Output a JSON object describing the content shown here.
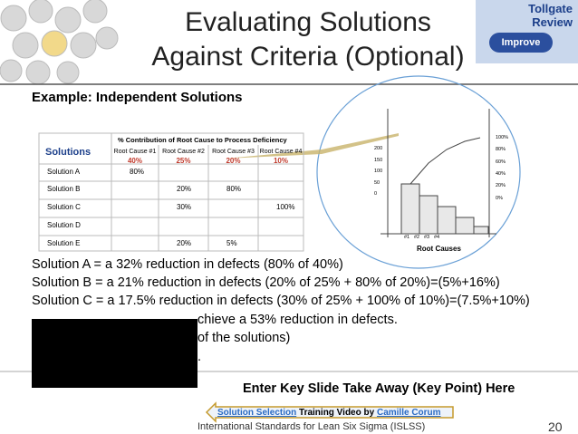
{
  "title": {
    "line1": "Evaluating Solutions",
    "line2": "Against Criteria (Optional)"
  },
  "badge": {
    "line1": "Tollgate",
    "line2": "Review",
    "phase": "Improve"
  },
  "subtitle": "Example: Independent Solutions",
  "table": {
    "caption": "% Contribution of Root Cause to Process Deficiency",
    "corner": "Solutions",
    "causes": [
      {
        "name": "Root Cause #1",
        "share": "40%"
      },
      {
        "name": "Root Cause #2",
        "share": "25%"
      },
      {
        "name": "Root Cause #3",
        "share": "20%"
      },
      {
        "name": "Root Cause #4",
        "share": "10%"
      }
    ],
    "rows": [
      [
        "Solution A",
        "80%",
        null,
        null,
        null
      ],
      [
        "Solution B",
        null,
        "20%",
        "80%",
        null
      ],
      [
        "Solution C",
        null,
        "30%",
        null,
        "100%"
      ],
      [
        "Solution D",
        null,
        null,
        null,
        null
      ],
      [
        "Solution E",
        null,
        "20%",
        "5%",
        null
      ]
    ]
  },
  "pareto": {
    "left_ticks": [
      "200",
      "150",
      "100",
      "50",
      "0"
    ],
    "right_ticks": [
      "100%",
      "80%",
      "60%",
      "40%",
      "20%",
      "0%"
    ],
    "x_labels": [
      "#1",
      "#2",
      "#3",
      "#4"
    ],
    "x_title": "Root Causes"
  },
  "body": [
    "Solution A = a 32% reduction in defects (80% of 40%)",
    "Solution B = a 21% reduction in defects (20% of 25% + 80% of 20%)=(5%+16%)",
    "Solution C = a 17.5% reduction in defects (30% of 25% + 100% of 10%)=(7.5%+10%)",
    "chieve a 53% reduction in defects.",
    "of the solutions)",
    "."
  ],
  "takeaway": "Enter Key Slide Take Away (Key Point) Here",
  "video": {
    "link": "Solution Selection",
    "text": " Training Video by ",
    "author": "Camille Corum"
  },
  "footer": {
    "text": "International Standards for Lean Six Sigma (ISLSS)",
    "page": "20"
  }
}
